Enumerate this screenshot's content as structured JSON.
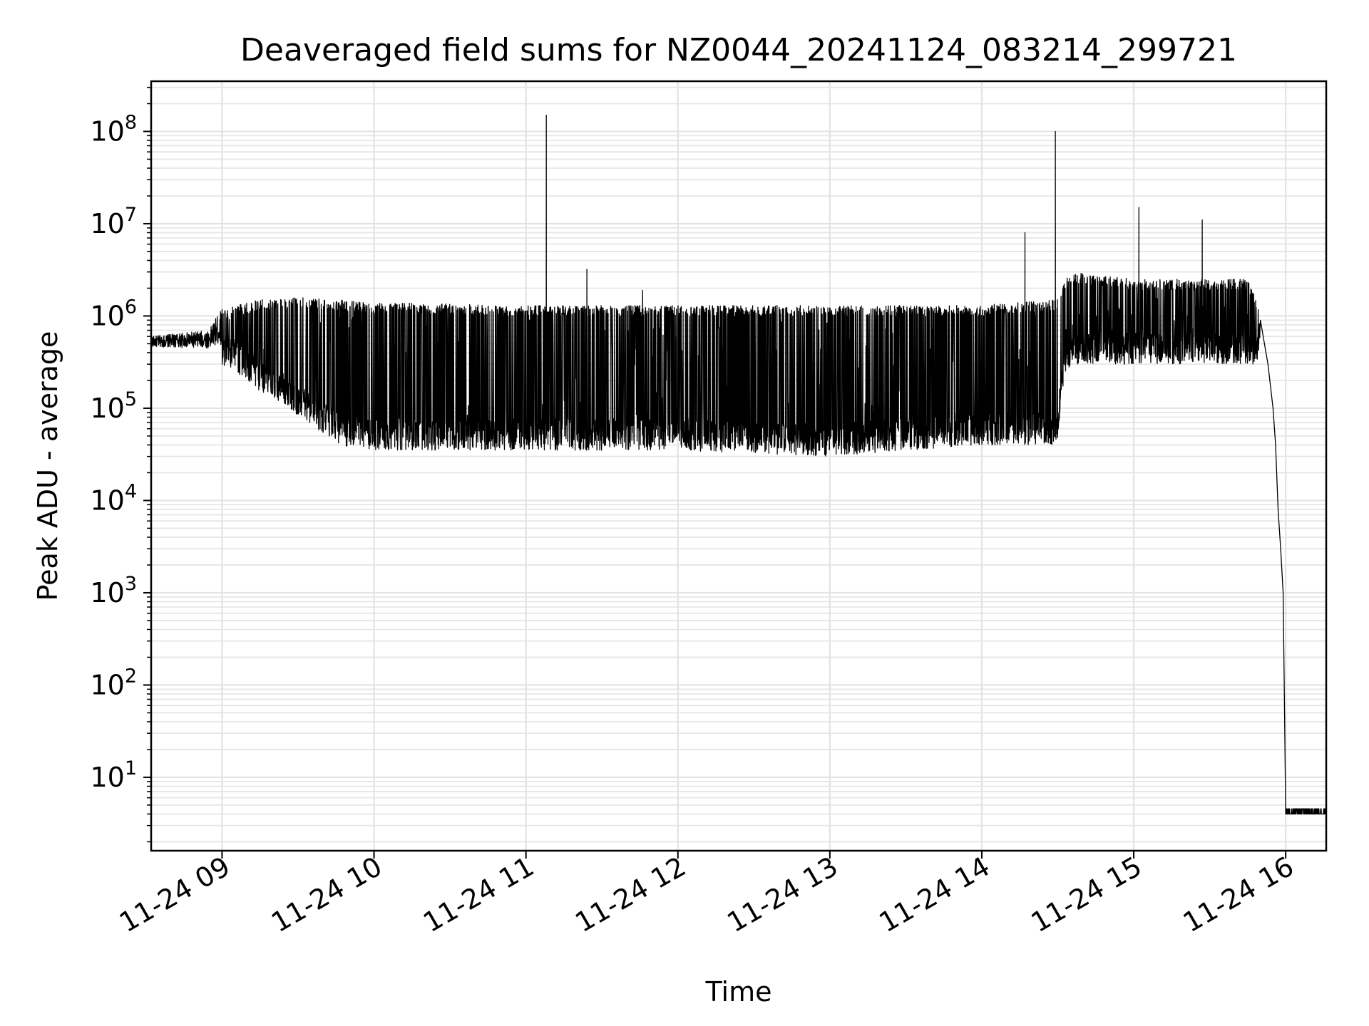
{
  "chart_data": {
    "type": "line",
    "title": "Deaveraged field sums for NZ0044_20241124_083214_299721",
    "xlabel": "Time",
    "ylabel": "Peak ADU - average",
    "yscale": "log",
    "grid": "on (major and minor)",
    "line_color": "#000000",
    "xlim": [
      "2024-11-24 08:32",
      "2024-11-24 16:16"
    ],
    "ylim": [
      1.6,
      350000000.0
    ],
    "x_ticks": [
      "11-24 09",
      "11-24 10",
      "11-24 11",
      "11-24 12",
      "11-24 13",
      "11-24 14",
      "11-24 15",
      "11-24 16"
    ],
    "y_ticks": [
      {
        "value": 10,
        "base": "10",
        "exp": "1"
      },
      {
        "value": 100,
        "base": "10",
        "exp": "2"
      },
      {
        "value": 1000,
        "base": "10",
        "exp": "3"
      },
      {
        "value": 10000,
        "base": "10",
        "exp": "4"
      },
      {
        "value": 100000,
        "base": "10",
        "exp": "5"
      },
      {
        "value": 1000000,
        "base": "10",
        "exp": "6"
      },
      {
        "value": 10000000,
        "base": "10",
        "exp": "7"
      },
      {
        "value": 100000000,
        "base": "10",
        "exp": "8"
      }
    ],
    "series": [
      {
        "baseline_envelope": [
          {
            "time": "2024-11-24 08:32",
            "low": 400000,
            "high": 600000
          },
          {
            "time": "2024-11-24 08:55",
            "low": 350000,
            "high": 700000
          },
          {
            "time": "2024-11-24 09:00",
            "low": 300000,
            "high": 1200000
          },
          {
            "time": "2024-11-24 09:15",
            "low": 150000,
            "high": 1500000
          },
          {
            "time": "2024-11-24 09:30",
            "low": 80000,
            "high": 1600000
          },
          {
            "time": "2024-11-24 09:45",
            "low": 40000,
            "high": 1500000
          },
          {
            "time": "2024-11-24 10:00",
            "low": 35000,
            "high": 1400000
          },
          {
            "time": "2024-11-24 11:00",
            "low": 35000,
            "high": 1300000
          },
          {
            "time": "2024-11-24 12:00",
            "low": 35000,
            "high": 1300000
          },
          {
            "time": "2024-11-24 13:00",
            "low": 30000,
            "high": 1300000
          },
          {
            "time": "2024-11-24 14:00",
            "low": 40000,
            "high": 1300000
          },
          {
            "time": "2024-11-24 14:30",
            "low": 40000,
            "high": 1500000
          },
          {
            "time": "2024-11-24 14:35",
            "low": 300000,
            "high": 3000000
          },
          {
            "time": "2024-11-24 15:00",
            "low": 300000,
            "high": 2500000
          },
          {
            "time": "2024-11-24 15:45",
            "low": 300000,
            "high": 2500000
          },
          {
            "time": "2024-11-24 15:50",
            "low": 300000,
            "high": 1000000
          }
        ],
        "spikes": [
          {
            "time": "2024-11-24 11:08",
            "value": 150000000
          },
          {
            "time": "2024-11-24 11:24",
            "value": 3200000
          },
          {
            "time": "2024-11-24 11:46",
            "value": 1900000
          },
          {
            "time": "2024-11-24 14:17",
            "value": 8000000
          },
          {
            "time": "2024-11-24 14:29",
            "value": 100000000
          },
          {
            "time": "2024-11-24 15:02",
            "value": 15000000
          },
          {
            "time": "2024-11-24 15:27",
            "value": 11000000
          }
        ],
        "decay": [
          {
            "time": "2024-11-24 15:50",
            "value": 900000
          },
          {
            "time": "2024-11-24 15:53",
            "value": 300000
          },
          {
            "time": "2024-11-24 15:55",
            "value": 100000
          },
          {
            "time": "2024-11-24 15:56",
            "value": 40000
          },
          {
            "time": "2024-11-24 15:57",
            "value": 8000
          },
          {
            "time": "2024-11-24 15:58",
            "value": 3000
          },
          {
            "time": "2024-11-24 15:59",
            "value": 1000
          },
          {
            "time": "2024-11-24 16:00",
            "value": 4
          }
        ],
        "floor": {
          "from": "2024-11-24 16:00",
          "to": "2024-11-24 16:16",
          "value": 4
        }
      }
    ]
  }
}
